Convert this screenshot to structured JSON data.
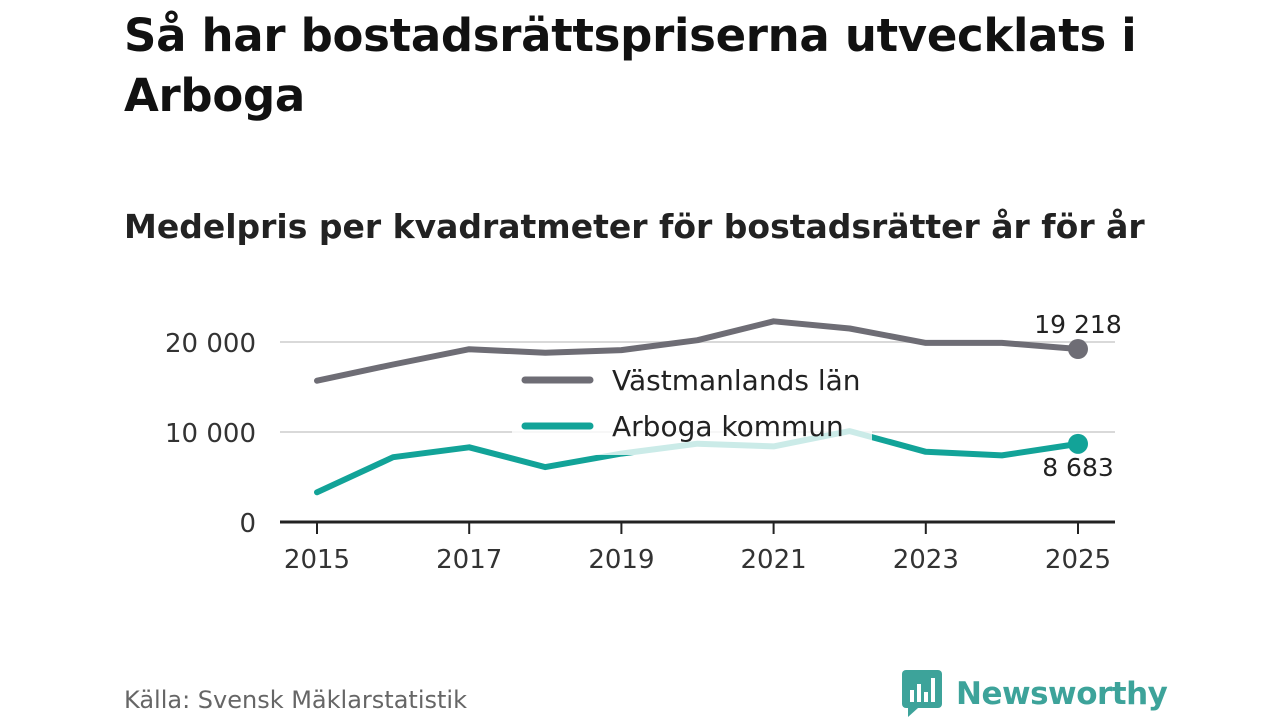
{
  "title": "Så har bostadsrättspriserna utvecklats i Arboga",
  "subtitle": "Medelpris per kvadratmeter för bostadsrätter år för år",
  "source": "Källa: Svensk Mäklarstatistik",
  "brand": "Newsworthy",
  "colors": {
    "vastmanland": "#6e6d75",
    "arboga": "#12a398",
    "grid": "#d9d9d9",
    "brand": "#3da39a"
  },
  "chart_data": {
    "type": "line",
    "x": [
      2015,
      2016,
      2017,
      2018,
      2019,
      2020,
      2021,
      2022,
      2023,
      2024,
      2025
    ],
    "ylim": [
      0,
      22500
    ],
    "xticks": [
      2015,
      2017,
      2019,
      2021,
      2023,
      2025
    ],
    "xtick_labels": [
      "2015",
      "2017",
      "2019",
      "2021",
      "2023",
      "2025"
    ],
    "yticks": [
      0,
      10000,
      20000
    ],
    "ytick_labels": [
      "0",
      "10 000",
      "20 000"
    ],
    "legend_position": "center",
    "series": [
      {
        "name": "Västmanlands län",
        "color": "#6e6d75",
        "values": [
          15700,
          17500,
          19200,
          18800,
          19100,
          20200,
          22300,
          21500,
          19900,
          19900,
          19218
        ],
        "end_label": "19 218"
      },
      {
        "name": "Arboga kommun",
        "color": "#12a398",
        "values": [
          3300,
          7200,
          8300,
          6100,
          7600,
          8700,
          8400,
          10100,
          7800,
          7400,
          8683
        ],
        "end_label": "8 683"
      }
    ]
  }
}
